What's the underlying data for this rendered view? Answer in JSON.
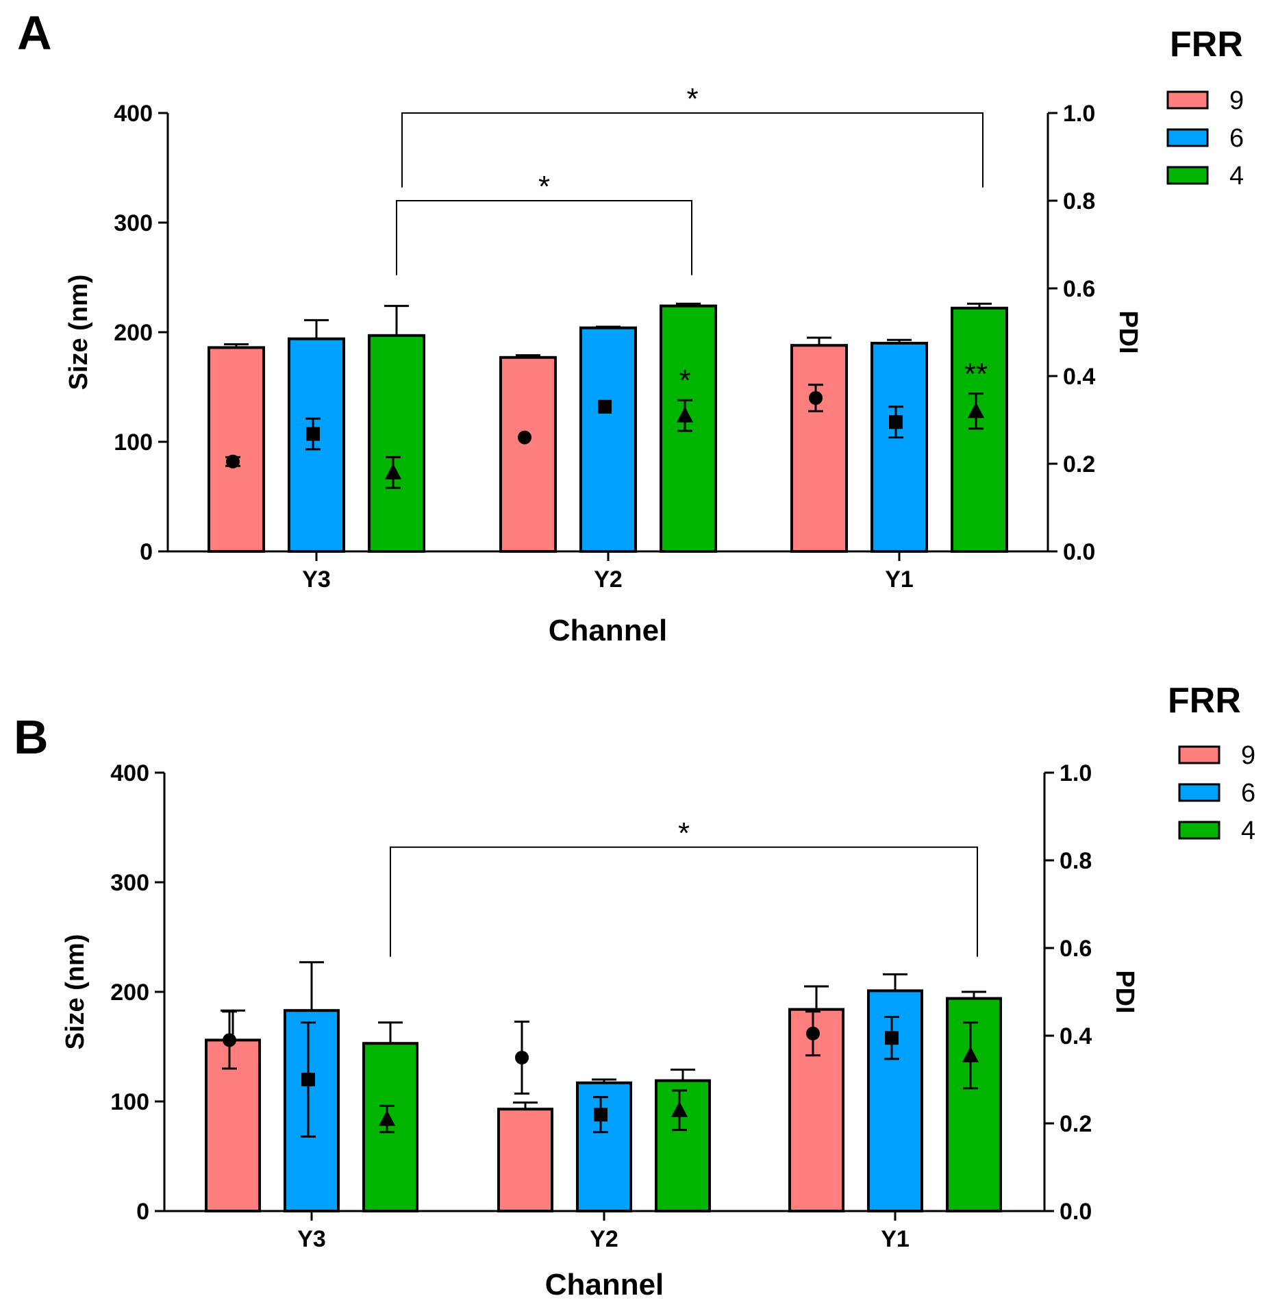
{
  "chart_data": [
    {
      "type": "bar",
      "panel_label": "A",
      "xlabel": "Channel",
      "ylabel": "Size (nm)",
      "y2label": "PDI",
      "ylim": [
        0,
        400
      ],
      "y2lim": [
        0,
        1.0
      ],
      "yticks": [
        "0",
        "100",
        "200",
        "300",
        "400"
      ],
      "y2ticks": [
        "0.0",
        "0.2",
        "0.4",
        "0.6",
        "0.8",
        "1.0"
      ],
      "categories": [
        "Y3",
        "Y2",
        "Y1"
      ],
      "legend_title": "FRR",
      "legend_position": "top-right",
      "series": [
        {
          "name": "9",
          "color": "#FF7F7F",
          "marker": "circle",
          "size": [
            186,
            177,
            188
          ],
          "size_err": [
            3,
            2,
            7
          ],
          "pdi": [
            0.205,
            0.26,
            0.35
          ],
          "pdi_err": [
            0.01,
            0.0,
            0.03
          ]
        },
        {
          "name": "6",
          "color": "#00A0FF",
          "marker": "square",
          "size": [
            194,
            204,
            190
          ],
          "size_err": [
            17,
            1,
            3
          ],
          "pdi": [
            0.268,
            0.33,
            0.295
          ],
          "pdi_err": [
            0.035,
            0.0,
            0.035
          ]
        },
        {
          "name": "4",
          "color": "#00B400",
          "marker": "triangle",
          "size": [
            197,
            224,
            222
          ],
          "size_err": [
            27,
            2,
            4
          ],
          "pdi": [
            0.18,
            0.31,
            0.32
          ],
          "pdi_err": [
            0.035,
            0.035,
            0.04
          ]
        }
      ],
      "significance_brackets": [
        {
          "label": "*",
          "from": {
            "category": "Y3",
            "series": "4"
          },
          "to": {
            "category": "Y1",
            "series": "4"
          },
          "level": 1.0,
          "left_drop": 0.83,
          "right_drop": 0.83
        },
        {
          "label": "*",
          "from": {
            "category": "Y3",
            "series": "4"
          },
          "to": {
            "category": "Y2",
            "series": "4"
          },
          "level": 0.8,
          "left_drop": 0.63,
          "right_drop": 0.63
        }
      ],
      "point_annotations": [
        {
          "label": "*",
          "category": "Y2",
          "series": "4"
        },
        {
          "label": "**",
          "category": "Y1",
          "series": "4"
        }
      ]
    },
    {
      "type": "bar",
      "panel_label": "B",
      "xlabel": "Channel",
      "ylabel": "Size (nm)",
      "y2label": "PDI",
      "ylim": [
        0,
        400
      ],
      "y2lim": [
        0,
        1.0
      ],
      "yticks": [
        "0",
        "100",
        "200",
        "300",
        "400"
      ],
      "y2ticks": [
        "0.0",
        "0.2",
        "0.4",
        "0.6",
        "0.8",
        "1.0"
      ],
      "categories": [
        "Y3",
        "Y2",
        "Y1"
      ],
      "legend_title": "FRR",
      "legend_position": "top-right",
      "series": [
        {
          "name": "9",
          "color": "#FF7F7F",
          "marker": "circle",
          "size": [
            156,
            93,
            184
          ],
          "size_err": [
            27,
            6,
            21
          ],
          "pdi": [
            0.39,
            0.35,
            0.405
          ],
          "pdi_err": [
            0.065,
            0.082,
            0.05
          ]
        },
        {
          "name": "6",
          "color": "#00A0FF",
          "marker": "square",
          "size": [
            183,
            117,
            201
          ],
          "size_err": [
            44,
            3,
            15
          ],
          "pdi": [
            0.3,
            0.22,
            0.395
          ],
          "pdi_err": [
            0.13,
            0.04,
            0.048
          ]
        },
        {
          "name": "4",
          "color": "#00B400",
          "marker": "triangle",
          "size": [
            153,
            119,
            194
          ],
          "size_err": [
            19,
            10,
            6
          ],
          "pdi": [
            0.21,
            0.23,
            0.355
          ],
          "pdi_err": [
            0.03,
            0.045,
            0.075
          ]
        }
      ],
      "significance_brackets": [
        {
          "label": "*",
          "from": {
            "category": "Y3",
            "series": "4"
          },
          "to": {
            "category": "Y1",
            "series": "4"
          },
          "level": 0.83,
          "left_drop": 0.58,
          "right_drop": 0.58
        }
      ],
      "point_annotations": []
    }
  ]
}
